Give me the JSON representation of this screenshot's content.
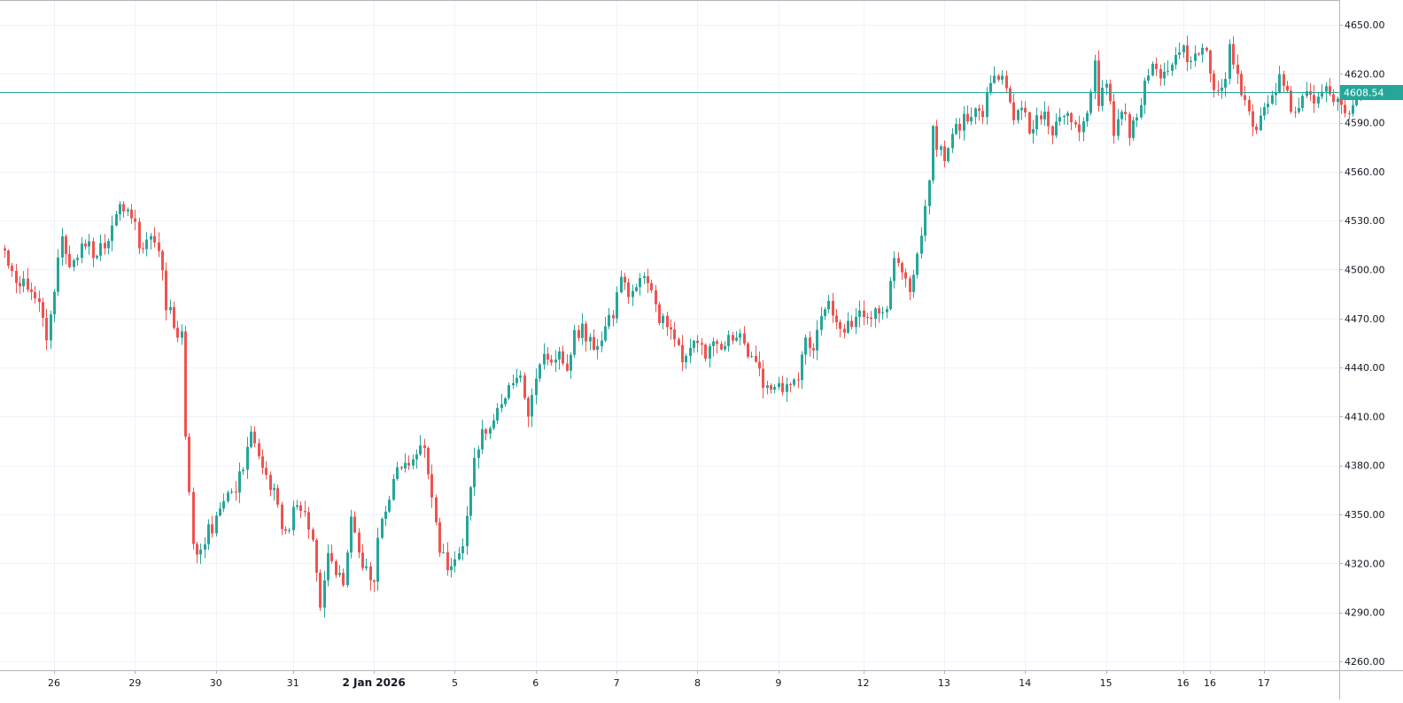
{
  "chart_data": {
    "type": "candlestick",
    "interval": "hourly",
    "x_tick_labels": [
      {
        "label": "26",
        "index": 13,
        "bold": false
      },
      {
        "label": "29",
        "index": 34,
        "bold": false
      },
      {
        "label": "30",
        "index": 55,
        "bold": false
      },
      {
        "label": "31",
        "index": 75,
        "bold": false
      },
      {
        "label": "2 Jan 2026",
        "index": 96,
        "bold": true
      },
      {
        "label": "5",
        "index": 117,
        "bold": false
      },
      {
        "label": "6",
        "index": 138,
        "bold": false
      },
      {
        "label": "7",
        "index": 159,
        "bold": false
      },
      {
        "label": "8",
        "index": 180,
        "bold": false
      },
      {
        "label": "9",
        "index": 201,
        "bold": false
      },
      {
        "label": "12",
        "index": 223,
        "bold": false
      },
      {
        "label": "13",
        "index": 244,
        "bold": false
      },
      {
        "label": "14",
        "index": 265,
        "bold": false
      },
      {
        "label": "15",
        "index": 286,
        "bold": false
      },
      {
        "label": "16",
        "index": 306,
        "bold": false
      },
      {
        "label": "16",
        "index": 313,
        "bold": false
      },
      {
        "label": "17",
        "index": 327,
        "bold": false
      }
    ],
    "y_axis": {
      "ylim": [
        4253,
        4658
      ],
      "ticks": [
        4260,
        4290,
        4320,
        4350,
        4380,
        4410,
        4440,
        4470,
        4500,
        4530,
        4560,
        4590,
        4620,
        4650
      ],
      "tick_labels": [
        "4260.00",
        "4290.00",
        "4320.00",
        "4350.00",
        "4380.00",
        "4410.00",
        "4440.00",
        "4470.00",
        "4500.00",
        "4530.00",
        "4560.00",
        "4590.00",
        "4620.00",
        "4650.00"
      ]
    },
    "last_price": {
      "value": 4608.54,
      "label": "4608.54",
      "color": "#26a69a"
    },
    "grid": true,
    "colors": {
      "up": "#26a69a",
      "down": "#ef5350",
      "grid": "#f0f3fa",
      "axis_text": "#131722"
    },
    "waypoints": [
      [
        0,
        4510
      ],
      [
        3,
        4490
      ],
      [
        6,
        4492
      ],
      [
        9,
        4478
      ],
      [
        11,
        4458
      ],
      [
        13,
        4490
      ],
      [
        15,
        4522
      ],
      [
        17,
        4505
      ],
      [
        19,
        4510
      ],
      [
        21,
        4515
      ],
      [
        24,
        4510
      ],
      [
        26,
        4518
      ],
      [
        28,
        4525
      ],
      [
        30,
        4542
      ],
      [
        32,
        4532
      ],
      [
        34,
        4525
      ],
      [
        36,
        4508
      ],
      [
        38,
        4522
      ],
      [
        40,
        4512
      ],
      [
        42,
        4480
      ],
      [
        44,
        4468
      ],
      [
        46,
        4458
      ],
      [
        47,
        4400
      ],
      [
        48,
        4360
      ],
      [
        49,
        4335
      ],
      [
        50,
        4325
      ],
      [
        52,
        4336
      ],
      [
        54,
        4342
      ],
      [
        56,
        4355
      ],
      [
        58,
        4368
      ],
      [
        60,
        4365
      ],
      [
        62,
        4380
      ],
      [
        64,
        4398
      ],
      [
        66,
        4388
      ],
      [
        68,
        4375
      ],
      [
        70,
        4362
      ],
      [
        72,
        4345
      ],
      [
        74,
        4340
      ],
      [
        76,
        4360
      ],
      [
        78,
        4348
      ],
      [
        80,
        4332
      ],
      [
        82,
        4292
      ],
      [
        84,
        4322
      ],
      [
        86,
        4315
      ],
      [
        88,
        4305
      ],
      [
        90,
        4345
      ],
      [
        92,
        4325
      ],
      [
        94,
        4315
      ],
      [
        96,
        4312
      ],
      [
        98,
        4350
      ],
      [
        100,
        4362
      ],
      [
        102,
        4378
      ],
      [
        104,
        4378
      ],
      [
        106,
        4388
      ],
      [
        108,
        4394
      ],
      [
        109,
        4395
      ],
      [
        110,
        4370
      ],
      [
        112,
        4348
      ],
      [
        113,
        4330
      ],
      [
        115,
        4318
      ],
      [
        117,
        4325
      ],
      [
        119,
        4332
      ],
      [
        120,
        4350
      ],
      [
        122,
        4385
      ],
      [
        124,
        4400
      ],
      [
        126,
        4402
      ],
      [
        128,
        4412
      ],
      [
        130,
        4420
      ],
      [
        132,
        4430
      ],
      [
        134,
        4440
      ],
      [
        135,
        4420
      ],
      [
        136,
        4410
      ],
      [
        138,
        4438
      ],
      [
        140,
        4448
      ],
      [
        142,
        4442
      ],
      [
        144,
        4446
      ],
      [
        146,
        4442
      ],
      [
        148,
        4458
      ],
      [
        150,
        4465
      ],
      [
        152,
        4455
      ],
      [
        154,
        4452
      ],
      [
        156,
        4462
      ],
      [
        158,
        4475
      ],
      [
        160,
        4492
      ],
      [
        162,
        4488
      ],
      [
        164,
        4494
      ],
      [
        166,
        4496
      ],
      [
        168,
        4490
      ],
      [
        170,
        4472
      ],
      [
        172,
        4462
      ],
      [
        174,
        4458
      ],
      [
        176,
        4448
      ],
      [
        178,
        4455
      ],
      [
        180,
        4450
      ],
      [
        182,
        4448
      ],
      [
        184,
        4456
      ],
      [
        186,
        4448
      ],
      [
        188,
        4455
      ],
      [
        190,
        4462
      ],
      [
        192,
        4455
      ],
      [
        194,
        4446
      ],
      [
        196,
        4435
      ],
      [
        198,
        4425
      ],
      [
        200,
        4430
      ],
      [
        202,
        4428
      ],
      [
        204,
        4425
      ],
      [
        206,
        4432
      ],
      [
        208,
        4458
      ],
      [
        210,
        4452
      ],
      [
        212,
        4470
      ],
      [
        214,
        4478
      ],
      [
        216,
        4470
      ],
      [
        218,
        4466
      ],
      [
        220,
        4465
      ],
      [
        222,
        4470
      ],
      [
        224,
        4468
      ],
      [
        226,
        4472
      ],
      [
        228,
        4475
      ],
      [
        229,
        4480
      ],
      [
        231,
        4505
      ],
      [
        233,
        4495
      ],
      [
        235,
        4485
      ],
      [
        237,
        4505
      ],
      [
        238,
        4520
      ],
      [
        240,
        4550
      ],
      [
        241,
        4590
      ],
      [
        242,
        4578
      ],
      [
        244,
        4570
      ],
      [
        246,
        4580
      ],
      [
        248,
        4590
      ],
      [
        250,
        4592
      ],
      [
        252,
        4596
      ],
      [
        254,
        4592
      ],
      [
        256,
        4617
      ],
      [
        258,
        4620
      ],
      [
        260,
        4612
      ],
      [
        262,
        4595
      ],
      [
        264,
        4600
      ],
      [
        266,
        4585
      ],
      [
        268,
        4590
      ],
      [
        270,
        4598
      ],
      [
        272,
        4582
      ],
      [
        274,
        4590
      ],
      [
        276,
        4595
      ],
      [
        278,
        4590
      ],
      [
        280,
        4588
      ],
      [
        282,
        4610
      ],
      [
        283,
        4628
      ],
      [
        284,
        4605
      ],
      [
        286,
        4612
      ],
      [
        288,
        4585
      ],
      [
        290,
        4598
      ],
      [
        292,
        4584
      ],
      [
        294,
        4592
      ],
      [
        296,
        4612
      ],
      [
        298,
        4625
      ],
      [
        300,
        4618
      ],
      [
        302,
        4625
      ],
      [
        304,
        4632
      ],
      [
        306,
        4636
      ],
      [
        308,
        4628
      ],
      [
        310,
        4633
      ],
      [
        312,
        4630
      ],
      [
        313,
        4625
      ],
      [
        314,
        4612
      ],
      [
        316,
        4610
      ],
      [
        317,
        4615
      ],
      [
        318,
        4636
      ],
      [
        320,
        4620
      ],
      [
        321,
        4610
      ],
      [
        323,
        4598
      ],
      [
        324,
        4588
      ],
      [
        326,
        4592
      ],
      [
        328,
        4600
      ],
      [
        329,
        4605
      ],
      [
        331,
        4618
      ],
      [
        333,
        4605
      ],
      [
        335,
        4598
      ],
      [
        336,
        4595
      ],
      [
        338,
        4612
      ],
      [
        340,
        4605
      ],
      [
        342,
        4612
      ],
      [
        344,
        4610
      ],
      [
        346,
        4602
      ],
      [
        348,
        4595
      ],
      [
        350,
        4598
      ],
      [
        352,
        4610
      ],
      [
        353,
        4603
      ]
    ]
  }
}
